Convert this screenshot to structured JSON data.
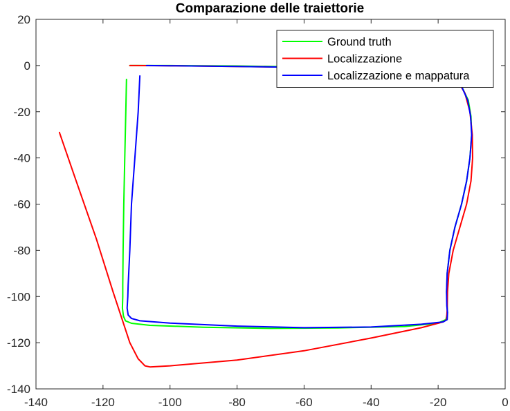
{
  "chart_data": {
    "type": "line",
    "title": "Comparazione delle traiettorie",
    "xlabel": "",
    "ylabel": "",
    "xlim": [
      -140,
      0
    ],
    "ylim": [
      -140,
      20
    ],
    "xticks": [
      -140,
      -120,
      -100,
      -80,
      -60,
      -40,
      -20,
      0
    ],
    "yticks": [
      20,
      0,
      -20,
      -40,
      -60,
      -80,
      -100,
      -120,
      -140
    ],
    "xtick_labels": [
      "-140",
      "-120",
      "-100",
      "-80",
      "-60",
      "-40",
      "-20",
      "0"
    ],
    "ytick_labels": [
      "20",
      "0",
      "-20",
      "-40",
      "-60",
      "-80",
      "-100",
      "-120",
      "-140"
    ],
    "grid": false,
    "legend_position": "top-right",
    "series": [
      {
        "name": "Ground truth",
        "color": "#00ff00",
        "x": [
          -113,
          -113.2,
          -113.5,
          -113.8,
          -114,
          -114.1,
          -114.1,
          -114.2,
          -113.9,
          -113.3,
          -111.5,
          -106,
          -90,
          -70,
          -50,
          -30,
          -20,
          -17.7,
          -17.2,
          -17.3,
          -17.5,
          -17.3,
          -16.5,
          -15,
          -13,
          -11.5,
          -10.5,
          -10,
          -10.2,
          -11,
          -13,
          -15,
          -16.5,
          -18,
          -20,
          -24,
          -30,
          -40,
          -60,
          -80,
          -100,
          -110,
          -112
        ],
        "y": [
          -6,
          -20,
          -40,
          -60,
          -80,
          -95,
          -100,
          -105,
          -108.5,
          -110.5,
          -111.6,
          -112.5,
          -113.3,
          -113.8,
          -113.6,
          -113,
          -111.5,
          -110,
          -107,
          -104,
          -98,
          -90,
          -80,
          -70,
          -60,
          -50,
          -40,
          -30,
          -22,
          -15,
          -9,
          -5,
          -3,
          -2.3,
          -2,
          -1.7,
          -1.4,
          -1,
          -0.6,
          -0.2,
          0,
          0,
          0
        ]
      },
      {
        "name": "Localizzazione",
        "color": "#ff0000",
        "x": [
          -133,
          -128,
          -122,
          -117,
          -112,
          -109.5,
          -108.5,
          -107.5,
          -106,
          -100,
          -80,
          -60,
          -40,
          -25,
          -18.5,
          -17.5,
          -17.3,
          -17.2,
          -16.8,
          -15.5,
          -13.5,
          -11.5,
          -10.2,
          -9.7,
          -9.8,
          -10.5,
          -12,
          -14,
          -16,
          -18,
          -20,
          -25,
          -30,
          -40,
          -60,
          -80,
          -100,
          -110,
          -112
        ],
        "y": [
          -29,
          -50,
          -75,
          -98,
          -120,
          -127,
          -128.5,
          -130,
          -130.5,
          -130,
          -127.5,
          -123.5,
          -118,
          -113.5,
          -111,
          -110,
          -106,
          -98,
          -90,
          -80,
          -70,
          -60,
          -50,
          -40,
          -30,
          -20,
          -12,
          -7,
          -4,
          -2.5,
          -2,
          -1.8,
          -1.5,
          -1.2,
          -0.8,
          -0.4,
          -0.1,
          0,
          0
        ]
      },
      {
        "name": "Localizzazione e mappatura",
        "color": "#0000ff",
        "x": [
          -109,
          -109.5,
          -110.5,
          -111.5,
          -112,
          -112.5,
          -112.6,
          -112.8,
          -112.5,
          -111.5,
          -109,
          -100,
          -80,
          -60,
          -40,
          -25,
          -18.5,
          -17.3,
          -17.2,
          -17.4,
          -17.5,
          -17.3,
          -16.5,
          -15,
          -13,
          -11.5,
          -10.5,
          -10,
          -10.3,
          -11.2,
          -13,
          -15,
          -16.5,
          -18,
          -20,
          -25,
          -30,
          -40,
          -60,
          -80,
          -100,
          -107
        ],
        "y": [
          -4.5,
          -20,
          -40,
          -60,
          -80,
          -95,
          -100,
          -105,
          -108,
          -109.5,
          -110.5,
          -111.5,
          -112.8,
          -113.5,
          -113.2,
          -112,
          -111,
          -110,
          -107,
          -104,
          -98,
          -90,
          -80,
          -70,
          -60,
          -50,
          -40,
          -30,
          -22,
          -15,
          -9,
          -5,
          -3,
          -2.3,
          -2,
          -1.7,
          -1.5,
          -1.2,
          -0.8,
          -0.4,
          -0.1,
          0
        ]
      }
    ]
  }
}
